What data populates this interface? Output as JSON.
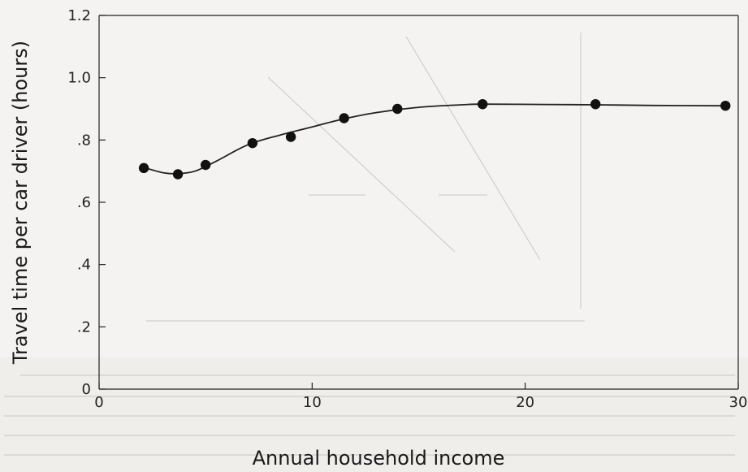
{
  "chart_data": {
    "type": "line",
    "title": "",
    "xlabel": "Annual household income",
    "ylabel": "Travel time per car driver (hours)",
    "xlim": [
      0,
      30
    ],
    "ylim": [
      0,
      1.2
    ],
    "x_ticks": [
      0,
      10,
      20,
      30
    ],
    "x_tick_labels": [
      "0",
      "10",
      "20",
      "30"
    ],
    "y_ticks": [
      0,
      0.2,
      0.4,
      0.6,
      0.8,
      1.0,
      1.2
    ],
    "y_tick_labels": [
      "0",
      ".2",
      ".4",
      ".6",
      ".8",
      "1.0",
      "1.2"
    ],
    "grid": false,
    "series": [
      {
        "points": [
          {
            "x": 2.1,
            "y": 0.71
          },
          {
            "x": 3.7,
            "y": 0.69
          },
          {
            "x": 5.0,
            "y": 0.72
          },
          {
            "x": 7.2,
            "y": 0.79
          },
          {
            "x": 9.0,
            "y": 0.81
          },
          {
            "x": 11.5,
            "y": 0.87
          },
          {
            "x": 14.0,
            "y": 0.9
          },
          {
            "x": 18.0,
            "y": 0.915
          },
          {
            "x": 23.3,
            "y": 0.915
          },
          {
            "x": 29.4,
            "y": 0.91
          }
        ],
        "fitted_curve": [
          {
            "x": 2.1,
            "y": 0.712
          },
          {
            "x": 3.0,
            "y": 0.695
          },
          {
            "x": 3.7,
            "y": 0.692
          },
          {
            "x": 4.5,
            "y": 0.7
          },
          {
            "x": 5.5,
            "y": 0.732
          },
          {
            "x": 7.0,
            "y": 0.785
          },
          {
            "x": 8.5,
            "y": 0.816
          },
          {
            "x": 10.0,
            "y": 0.842
          },
          {
            "x": 11.5,
            "y": 0.868
          },
          {
            "x": 13.0,
            "y": 0.888
          },
          {
            "x": 15.0,
            "y": 0.905
          },
          {
            "x": 17.0,
            "y": 0.913
          },
          {
            "x": 18.0,
            "y": 0.915
          },
          {
            "x": 21.0,
            "y": 0.914
          },
          {
            "x": 23.3,
            "y": 0.913
          },
          {
            "x": 26.0,
            "y": 0.911
          },
          {
            "x": 29.4,
            "y": 0.91
          }
        ]
      }
    ]
  }
}
